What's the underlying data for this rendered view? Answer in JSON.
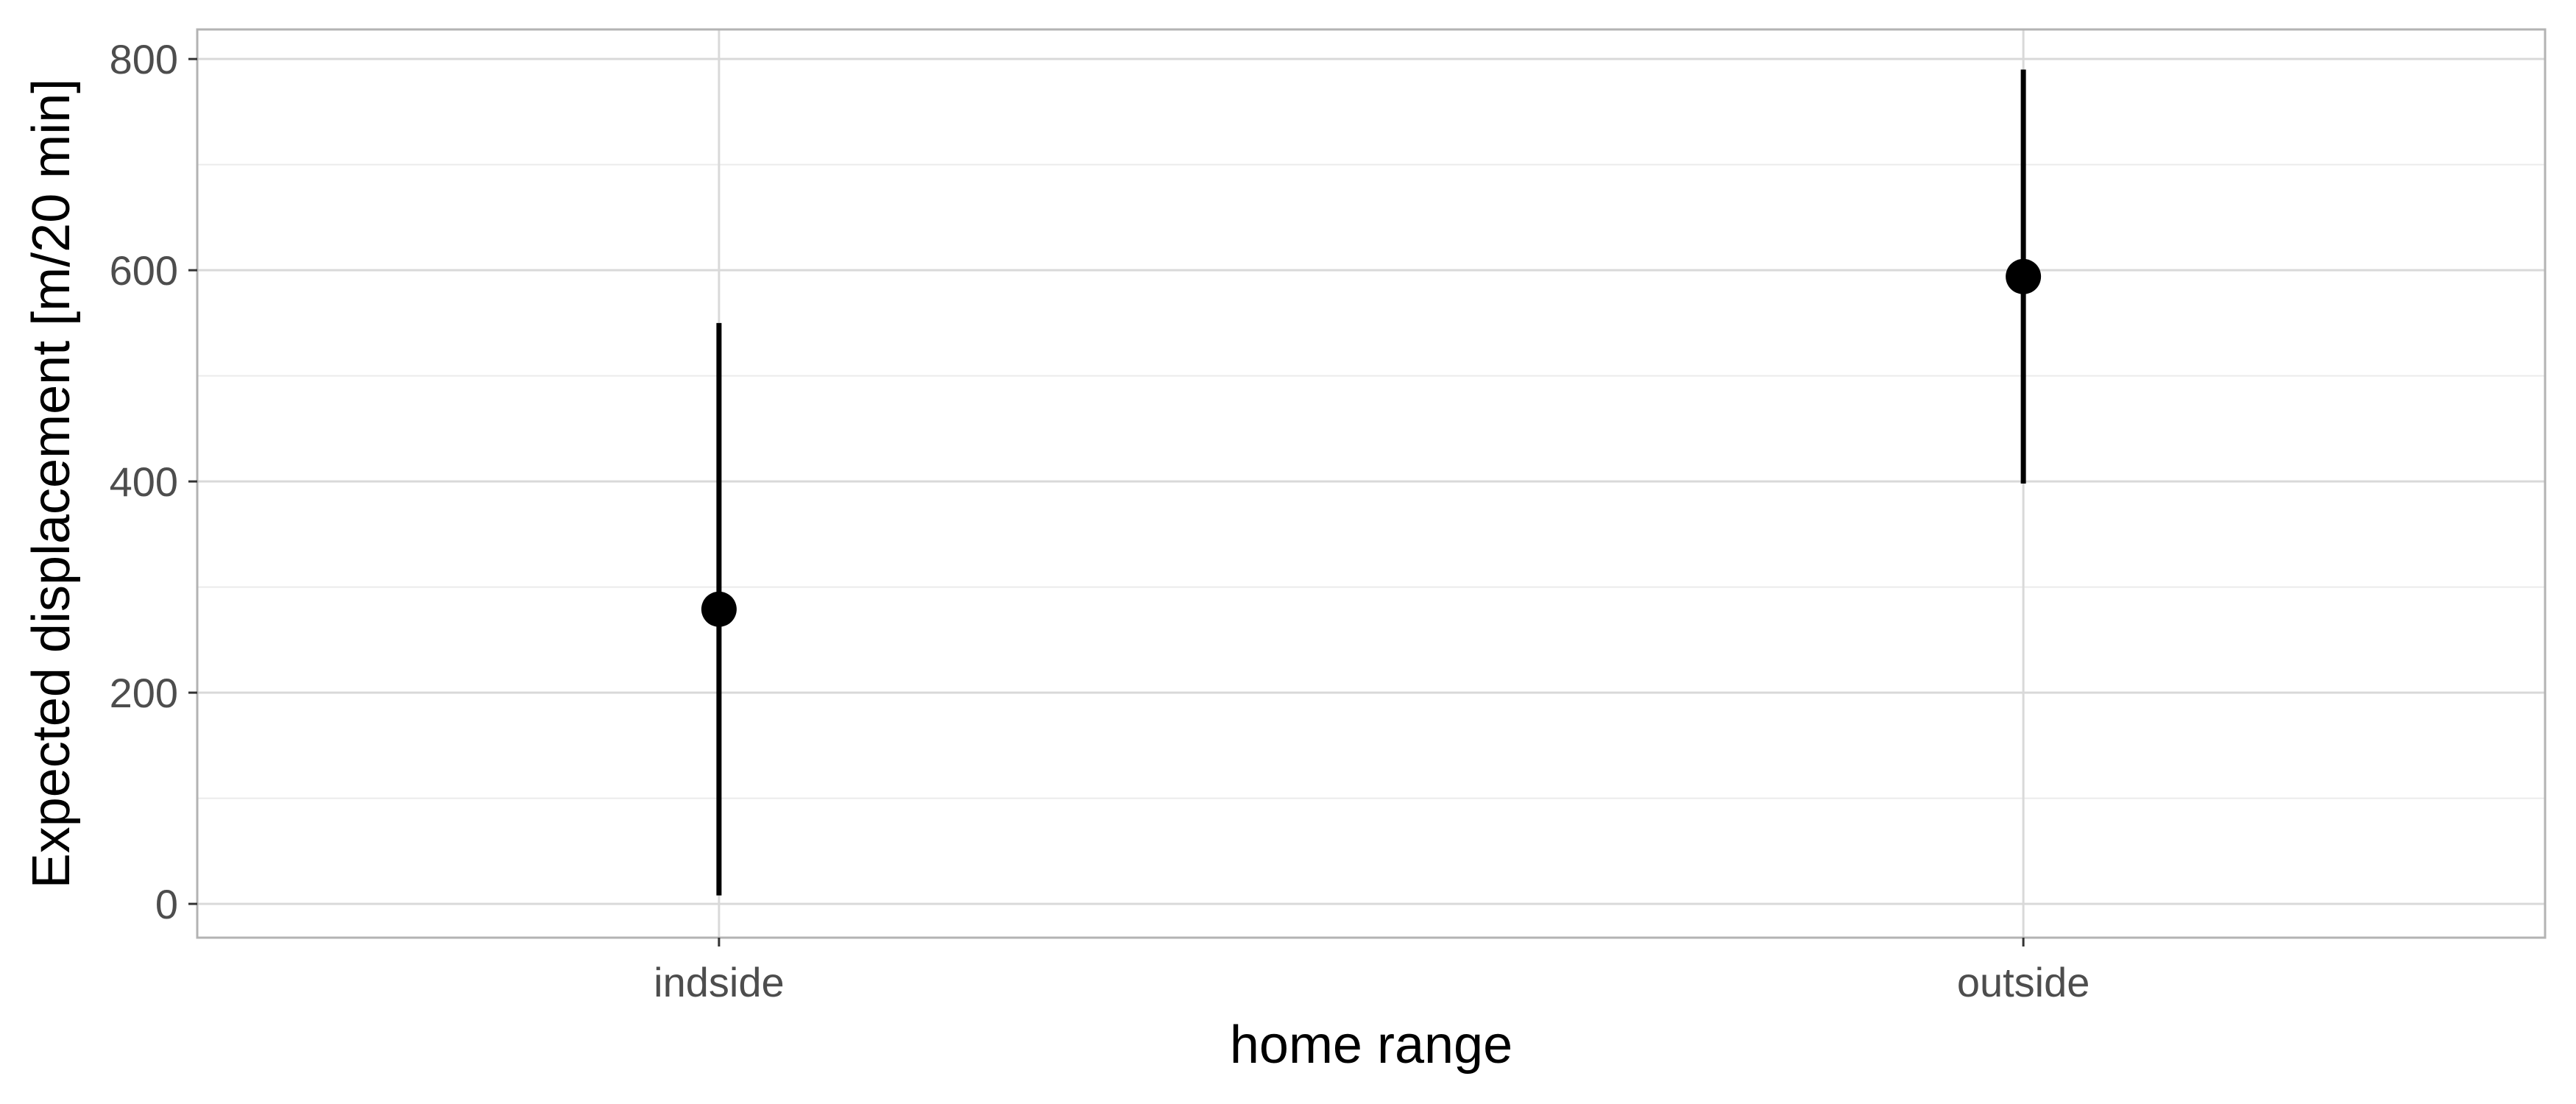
{
  "chart_data": {
    "type": "scatter",
    "title": "",
    "xlabel": "home range",
    "ylabel": "Expected displacement [m/20 min]",
    "categories": [
      "indside",
      "outside"
    ],
    "points": [
      {
        "category": "indside",
        "y": 279,
        "ymin": 8,
        "ymax": 550
      },
      {
        "category": "outside",
        "y": 594,
        "ymin": 398,
        "ymax": 790
      }
    ],
    "ylim": [
      -32,
      828
    ],
    "yticks": [
      0,
      200,
      400,
      600,
      800
    ],
    "yticks_minor": [
      100,
      300,
      500,
      700
    ],
    "grid": true,
    "legend": "none",
    "colors": {
      "point": "#000000",
      "errorbar": "#000000",
      "grid_major": "#d9d9d9",
      "grid_minor": "#ebebeb",
      "panel_border": "#b3b3b3",
      "tick_label": "#4d4d4d"
    }
  }
}
